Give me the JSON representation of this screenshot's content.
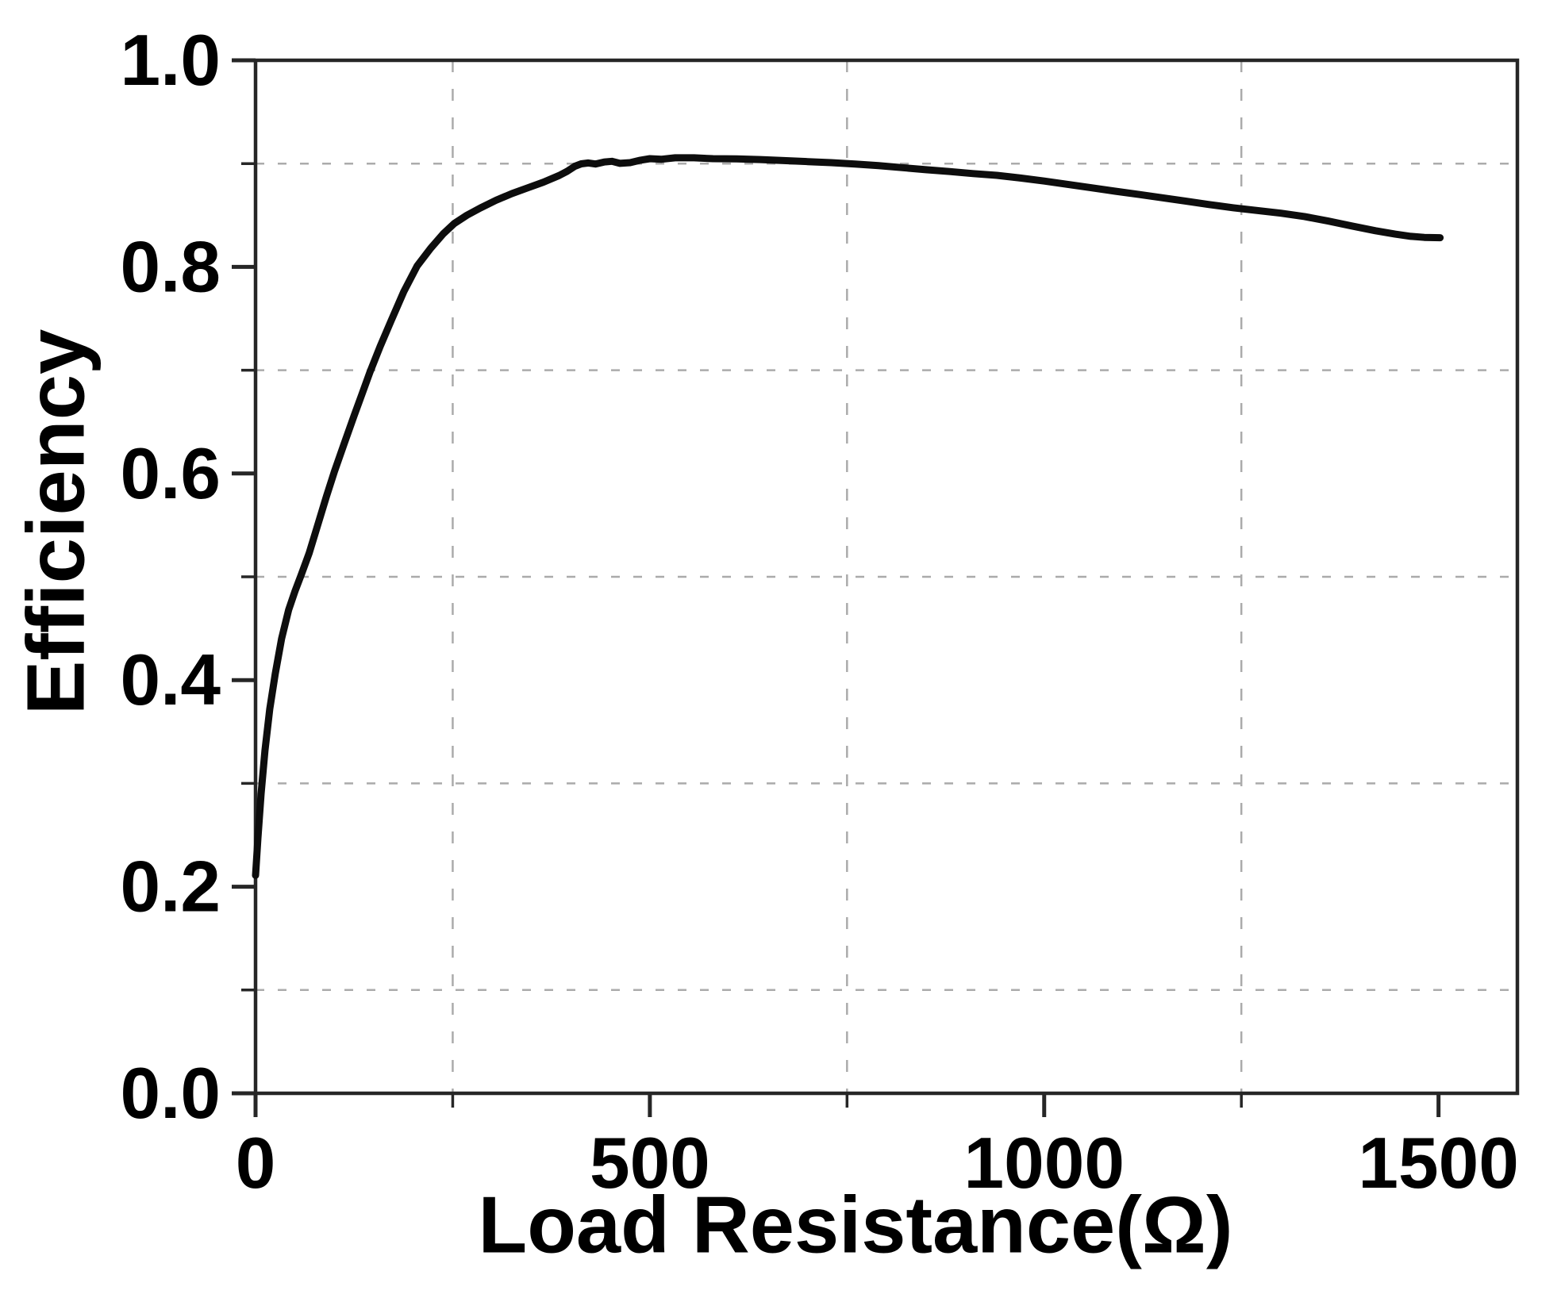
{
  "figure": {
    "background": "#ffffff"
  },
  "chart_data": {
    "type": "line",
    "title": "",
    "xlabel": "Load Resistance(Ω)",
    "ylabel": "Efficiency",
    "xlim": [
      0,
      1600
    ],
    "ylim": [
      0.0,
      1.0
    ],
    "x_major_ticks": [
      0,
      500,
      1000,
      1500
    ],
    "x_tick_labels": [
      "0",
      "500",
      "1000",
      "1500"
    ],
    "x_minor_ticks": [
      250,
      750,
      1250
    ],
    "y_major_ticks": [
      0.0,
      0.2,
      0.4,
      0.6,
      0.8,
      1.0
    ],
    "y_tick_labels": [
      "0.0",
      "0.2",
      "0.4",
      "0.6",
      "0.8",
      "1.0"
    ],
    "y_minor_ticks": [
      0.1,
      0.3,
      0.5,
      0.7,
      0.9
    ],
    "grid": {
      "visible": true,
      "style": "dashed",
      "at": "minor-ticks-only",
      "color": "#ababab"
    },
    "legend": {
      "visible": false
    },
    "colors": {
      "curve": "#0d0d0d",
      "axis": "#262626",
      "gridline": "#ababab",
      "text": "#000000"
    },
    "series": [
      {
        "name": "Efficiency",
        "points": [
          [
            0,
            0.211
          ],
          [
            3,
            0.247
          ],
          [
            7,
            0.29
          ],
          [
            12,
            0.332
          ],
          [
            18,
            0.372
          ],
          [
            25,
            0.406
          ],
          [
            33,
            0.44
          ],
          [
            42,
            0.468
          ],
          [
            50,
            0.486
          ],
          [
            58,
            0.502
          ],
          [
            68,
            0.523
          ],
          [
            80,
            0.553
          ],
          [
            90,
            0.578
          ],
          [
            100,
            0.602
          ],
          [
            112,
            0.628
          ],
          [
            125,
            0.656
          ],
          [
            135,
            0.677
          ],
          [
            145,
            0.698
          ],
          [
            158,
            0.723
          ],
          [
            172,
            0.748
          ],
          [
            188,
            0.776
          ],
          [
            205,
            0.801
          ],
          [
            222,
            0.818
          ],
          [
            238,
            0.832
          ],
          [
            252,
            0.842
          ],
          [
            268,
            0.85
          ],
          [
            285,
            0.857
          ],
          [
            305,
            0.8645
          ],
          [
            325,
            0.871
          ],
          [
            345,
            0.8765
          ],
          [
            365,
            0.882
          ],
          [
            385,
            0.8885
          ],
          [
            395,
            0.8925
          ],
          [
            405,
            0.8975
          ],
          [
            413,
            0.8998
          ],
          [
            422,
            0.9006
          ],
          [
            431,
            0.8996
          ],
          [
            442,
            0.9015
          ],
          [
            452,
            0.9022
          ],
          [
            462,
            0.9002
          ],
          [
            475,
            0.9009
          ],
          [
            488,
            0.9033
          ],
          [
            500,
            0.9048
          ],
          [
            515,
            0.9042
          ],
          [
            532,
            0.9056
          ],
          [
            556,
            0.9056
          ],
          [
            580,
            0.9048
          ],
          [
            610,
            0.9046
          ],
          [
            640,
            0.9039
          ],
          [
            670,
            0.9029
          ],
          [
            700,
            0.9019
          ],
          [
            730,
            0.9009
          ],
          [
            760,
            0.8996
          ],
          [
            790,
            0.898
          ],
          [
            820,
            0.8961
          ],
          [
            850,
            0.8941
          ],
          [
            880,
            0.8923
          ],
          [
            910,
            0.8903
          ],
          [
            940,
            0.8886
          ],
          [
            970,
            0.886
          ],
          [
            1000,
            0.8831
          ],
          [
            1030,
            0.8799
          ],
          [
            1060,
            0.8766
          ],
          [
            1090,
            0.8733
          ],
          [
            1120,
            0.8701
          ],
          [
            1150,
            0.8669
          ],
          [
            1180,
            0.8636
          ],
          [
            1210,
            0.8603
          ],
          [
            1240,
            0.8572
          ],
          [
            1270,
            0.8546
          ],
          [
            1300,
            0.852
          ],
          [
            1330,
            0.8488
          ],
          [
            1360,
            0.8444
          ],
          [
            1390,
            0.8396
          ],
          [
            1420,
            0.835
          ],
          [
            1445,
            0.8317
          ],
          [
            1465,
            0.8296
          ],
          [
            1482,
            0.8286
          ],
          [
            1502,
            0.8283
          ]
        ]
      }
    ]
  }
}
